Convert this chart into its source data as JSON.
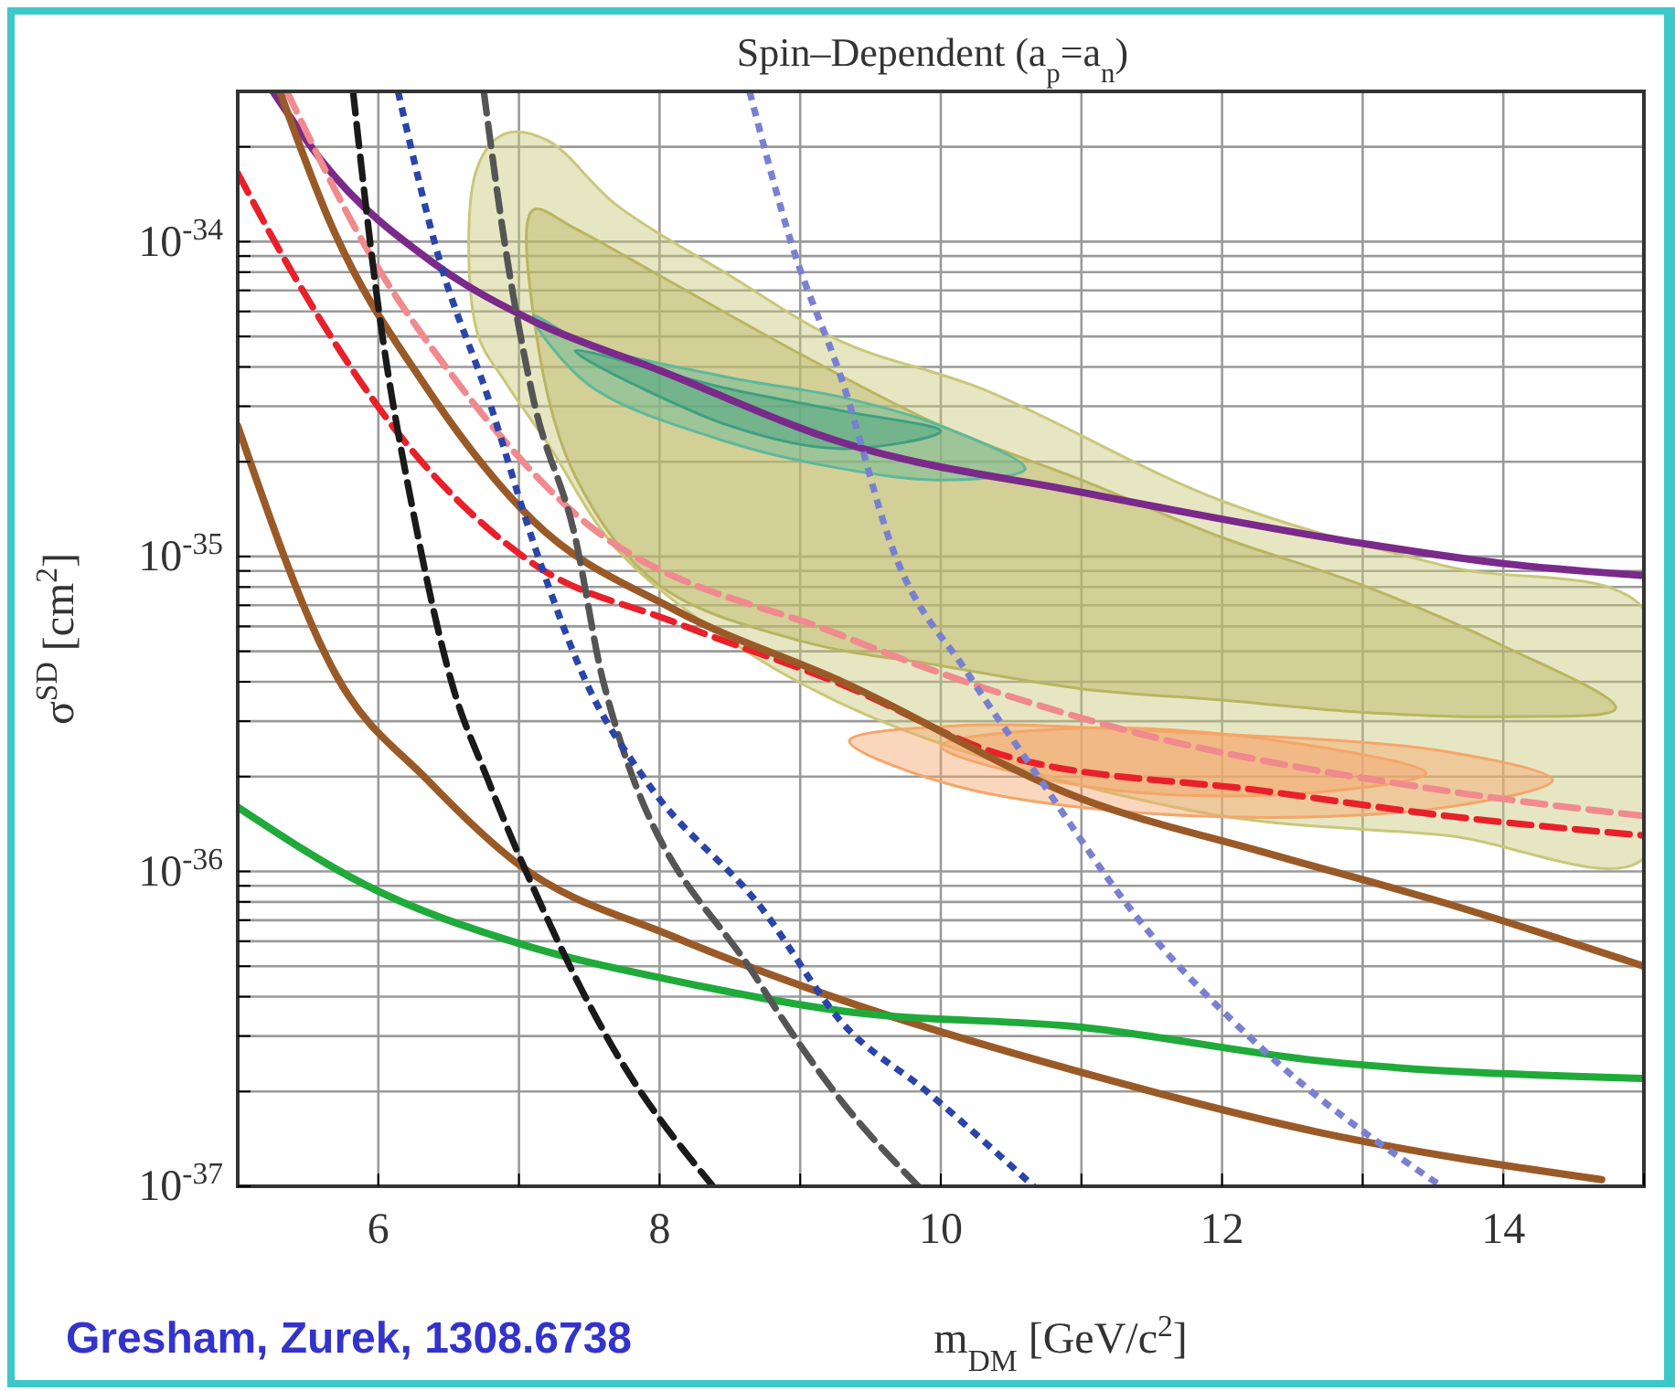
{
  "chart_data": {
    "type": "line",
    "title": "Spin–Dependent (a$_{p}$=a$_{n}$)",
    "xlabel": "m$_{DM}$ [GeV/c$^{2}$]",
    "ylabel": "σ$^{SD}$ [cm$^{2}$]",
    "annotations": [
      "Gresham, Zurek, 1308.6738"
    ],
    "log": "y",
    "grid": true,
    "xlim": [
      5,
      15
    ],
    "xticks": [
      {
        "value": 5,
        "label": null
      },
      6,
      {
        "value": 7,
        "label": null
      },
      8,
      {
        "value": 9,
        "label": null
      },
      10,
      {
        "value": 11,
        "label": null
      },
      12,
      {
        "value": 13,
        "label": null
      },
      14,
      {
        "value": 15,
        "label": null
      }
    ],
    "ylim": [
      1e-37,
      3e-34
    ],
    "yticks": [
      {
        "value": 1e-37,
        "label": "10$^{-37}$"
      },
      {
        "value": 2e-37,
        "label": null
      },
      {
        "value": 3e-37,
        "label": null
      },
      {
        "value": 4e-37,
        "label": null
      },
      {
        "value": 5e-37,
        "label": null
      },
      {
        "value": 6e-37,
        "label": null
      },
      {
        "value": 7e-37,
        "label": null
      },
      {
        "value": 8e-37,
        "label": null
      },
      {
        "value": 9e-37,
        "label": null
      },
      {
        "value": 1e-36,
        "label": "10$^{-36}$"
      },
      {
        "value": 2e-36,
        "label": null
      },
      {
        "value": 3e-36,
        "label": null
      },
      {
        "value": 4e-36,
        "label": null
      },
      {
        "value": 5e-36,
        "label": null
      },
      {
        "value": 6e-36,
        "label": null
      },
      {
        "value": 7e-36,
        "label": null
      },
      {
        "value": 8e-36,
        "label": null
      },
      {
        "value": 9e-36,
        "label": null
      },
      {
        "value": 1e-35,
        "label": "10$^{-35}$"
      },
      {
        "value": 2e-35,
        "label": null
      },
      {
        "value": 3e-35,
        "label": null
      },
      {
        "value": 4e-35,
        "label": null
      },
      {
        "value": 5e-35,
        "label": null
      },
      {
        "value": 6e-35,
        "label": null
      },
      {
        "value": 7e-35,
        "label": null
      },
      {
        "value": 8e-35,
        "label": null
      },
      {
        "value": 9e-35,
        "label": null
      },
      {
        "value": 1e-34,
        "label": "10$^{-34}$"
      },
      {
        "value": 2e-34,
        "label": null
      }
    ],
    "series": [
      {
        "type": "area",
        "color": "#c9c77a",
        "x": [
          6.7,
          6.9,
          7.2,
          7.7,
          8.5,
          9.3,
          10.3,
          12,
          13.6,
          15,
          15,
          13.6,
          12,
          10.3,
          9.3,
          8.5,
          7.7,
          7.2,
          6.9,
          6.7
        ],
        "values": [
          1.7e-34,
          2.2e-34,
          2.1e-34,
          1.3e-34,
          7.8e-35,
          4.8e-35,
          3.4e-35,
          1.5e-35,
          9.3e-36,
          6.8e-36,
          1.1e-36,
          1.3e-36,
          1.5e-36,
          2.3e-36,
          3.4e-36,
          5.4e-36,
          1.05e-35,
          2.3e-35,
          3.6e-35,
          5.2e-35
        ]
      },
      {
        "type": "area",
        "color": "#b9b560",
        "x": [
          7.1,
          7.4,
          8,
          9,
          10,
          11,
          12,
          13,
          14,
          14.8,
          14,
          13,
          12,
          11,
          10,
          9,
          8,
          7.4,
          7.12
        ],
        "values": [
          1.26e-34,
          1.1e-34,
          7.8e-35,
          4.4e-35,
          2.6e-35,
          1.75e-35,
          1.15e-35,
          8.1e-36,
          5.2e-36,
          3.3e-36,
          3.1e-36,
          3.2e-36,
          3.5e-36,
          3.8e-36,
          4.5e-36,
          5.4e-36,
          8.1e-36,
          1.8e-35,
          5.2e-35
        ]
      },
      {
        "type": "area",
        "color": "#5fb89a",
        "x": [
          7.1,
          7.5,
          8.5,
          9.3,
          10,
          10.6,
          10,
          9.3,
          8.5,
          7.5
        ],
        "values": [
          5.8e-35,
          4.7e-35,
          3.7e-35,
          3.2e-35,
          2.6e-35,
          1.9e-35,
          1.75e-35,
          1.9e-35,
          2.3e-35,
          3.5e-35
        ]
      },
      {
        "type": "area",
        "color": "#3f9f80",
        "x": [
          7.4,
          8.5,
          9.3,
          10,
          9.3,
          8.5
        ],
        "values": [
          4.5e-35,
          3.4e-35,
          2.9e-35,
          2.5e-35,
          2.2e-35,
          2.6e-35
        ]
      },
      {
        "type": "area",
        "color": "#f4a66a",
        "x": [
          9.35,
          10.1,
          11.8,
          13.6,
          14.35,
          13.6,
          11.8,
          10.1
        ],
        "values": [
          2.6e-36,
          2.9e-36,
          2.75e-36,
          2.4e-36,
          1.95e-36,
          1.6e-36,
          1.5e-36,
          1.87e-36
        ]
      },
      {
        "type": "area",
        "color": "#f4a66a",
        "x": [
          10,
          11,
          12.4,
          13.45,
          12.4,
          11
        ],
        "values": [
          2.5e-36,
          2.85e-36,
          2.6e-36,
          2.05e-36,
          1.75e-36,
          1.87e-36
        ]
      },
      {
        "color": "#7a2a8a",
        "line_style": "solid",
        "x": [
          5.25,
          5.6,
          6.4,
          7.1,
          8,
          9.3,
          11,
          13,
          14,
          15
        ],
        "values": [
          3e-34,
          1.8e-34,
          8.5e-35,
          5.6e-35,
          3.9e-35,
          2.3e-35,
          1.6e-35,
          1.1e-35,
          9.5e-36,
          8.7e-36
        ]
      },
      {
        "color": "#e8202a",
        "line_style": "dashed",
        "x": [
          5,
          5.4,
          6.1,
          7.1,
          8.1,
          9.25,
          10.5,
          12.3,
          13.6,
          15
        ],
        "values": [
          1.65e-34,
          7.8e-35,
          2.6e-35,
          9.5e-36,
          6.2e-36,
          4e-36,
          2.3e-36,
          1.8e-36,
          1.5e-36,
          1.3e-36
        ]
      },
      {
        "color": "#f08a8e",
        "line_style": "dashed",
        "x": [
          5.35,
          5.9,
          6.6,
          7.3,
          9.3,
          11.2,
          13.6,
          15
        ],
        "values": [
          3e-34,
          9.8e-35,
          3.4e-35,
          1.5e-35,
          5.6e-36,
          2.9e-36,
          1.8e-36,
          1.5e-36
        ]
      },
      {
        "color": "#9a5a28",
        "line_style": "solid",
        "x": [
          5.3,
          5.65,
          6.35,
          7.1,
          8.1,
          9.3,
          11,
          12.3,
          13.6,
          15
        ],
        "values": [
          3e-34,
          1.17e-34,
          3.4e-35,
          1.3e-35,
          6.8e-36,
          4e-36,
          1.7e-36,
          1.15e-36,
          7.9e-37,
          5e-37
        ]
      },
      {
        "color": "#9a5a28",
        "line_style": "solid",
        "x": [
          5,
          5.7,
          6.35,
          7,
          8.1,
          9.3,
          11,
          12.7,
          14.7
        ],
        "values": [
          2.6e-35,
          4.2e-36,
          1.95e-36,
          1.05e-36,
          6.2e-37,
          3.9e-37,
          2.3e-37,
          1.48e-37,
          1.05e-37
        ]
      },
      {
        "color": "#1faa3a",
        "line_style": "solid",
        "x": [
          5,
          5.9,
          7,
          8.1,
          9.3,
          11,
          12.7,
          15
        ],
        "values": [
          1.6e-36,
          9.1e-37,
          5.9e-37,
          4.5e-37,
          3.6e-37,
          3.2e-37,
          2.5e-37,
          2.2e-37
        ]
      },
      {
        "color": "#1a1a1a",
        "line_style": "dashed",
        "x": [
          5.82,
          6,
          6.26,
          6.52,
          6.78,
          7.2,
          7.64,
          8.38
        ],
        "values": [
          3e-34,
          6.2e-35,
          1.3e-35,
          4e-36,
          1.95e-36,
          7.1e-37,
          2.9e-37,
          1e-37
        ]
      },
      {
        "color": "#555555",
        "line_style": "dashed",
        "x": [
          6.75,
          6.9,
          7.1,
          7.4,
          7.6,
          8.7,
          9.3,
          9.84
        ],
        "values": [
          3e-34,
          9.8e-35,
          3.2e-35,
          1.15e-35,
          4e-36,
          4.5e-37,
          1.85e-37,
          1e-37
        ]
      },
      {
        "color": "#2a44a8",
        "line_style": "dotted",
        "x": [
          6.14,
          6.43,
          6.78,
          7.12,
          7.5,
          7.9,
          8.73,
          9.3,
          9.9,
          10.66
        ],
        "values": [
          3e-34,
          8.9e-35,
          3.2e-35,
          1.05e-35,
          3.8e-36,
          1.95e-36,
          7.6e-37,
          3.3e-37,
          2e-37,
          1e-37
        ]
      },
      {
        "color": "#7a80d0",
        "line_style": "dotted",
        "x": [
          8.64,
          8.94,
          9.3,
          9.66,
          10.2,
          10.66,
          11.4,
          12.26,
          13.56
        ],
        "values": [
          3e-34,
          9.8e-35,
          3.6e-35,
          1.05e-35,
          4.2e-36,
          2.1e-36,
          7.1e-37,
          2.8e-37,
          1e-37
        ]
      }
    ]
  }
}
